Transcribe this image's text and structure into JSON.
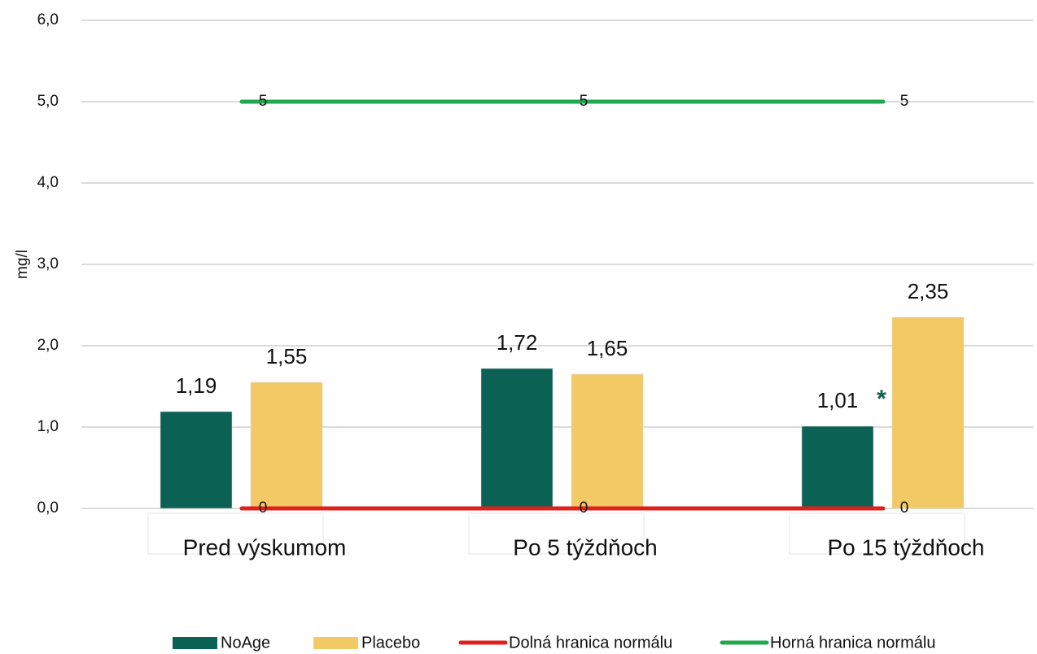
{
  "chart_data": {
    "type": "bar",
    "y_label": "mg/l",
    "categories": [
      "Pred výskumom",
      "Po 5 týždňoch",
      "Po 15 týždňoch"
    ],
    "series": [
      {
        "name": "NoAge",
        "type": "bar",
        "color": "#0b6153",
        "values": [
          1.19,
          1.72,
          1.01
        ],
        "value_labels": [
          "1,19",
          "1,72",
          "1,01"
        ]
      },
      {
        "name": "Placebo",
        "type": "bar",
        "color": "#f2c965",
        "values": [
          1.55,
          1.65,
          2.35
        ],
        "value_labels": [
          "1,55",
          "1,65",
          "2,35"
        ]
      },
      {
        "name": "Dolná hranica normálu",
        "type": "line",
        "color": "#e0201b",
        "values": [
          0,
          0,
          0
        ]
      },
      {
        "name": "Horná hranica normálu",
        "type": "line",
        "color": "#21a851",
        "values": [
          5,
          5,
          5
        ]
      }
    ],
    "annotations": [
      {
        "text": "*",
        "category": 2,
        "color": "#0b6153"
      }
    ],
    "ylim": [
      0,
      6
    ],
    "yticks": [
      {
        "value": 0,
        "label": "0,0"
      },
      {
        "value": 1,
        "label": "1,0"
      },
      {
        "value": 2,
        "label": "2,0"
      },
      {
        "value": 3,
        "label": "3,0"
      },
      {
        "value": 4,
        "label": "4,0"
      },
      {
        "value": 5,
        "label": "5,0"
      },
      {
        "value": 6,
        "label": "6,0"
      }
    ],
    "grid": true
  }
}
